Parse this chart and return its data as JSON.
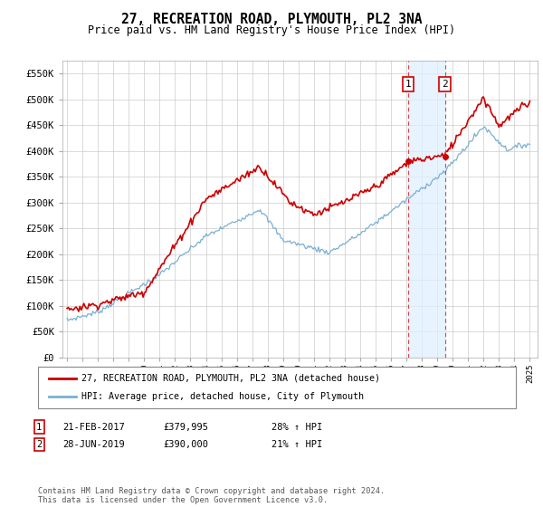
{
  "title": "27, RECREATION ROAD, PLYMOUTH, PL2 3NA",
  "subtitle": "Price paid vs. HM Land Registry's House Price Index (HPI)",
  "ylim": [
    0,
    575000
  ],
  "yticks": [
    0,
    50000,
    100000,
    150000,
    200000,
    250000,
    300000,
    350000,
    400000,
    450000,
    500000,
    550000
  ],
  "ytick_labels": [
    "£0",
    "£50K",
    "£100K",
    "£150K",
    "£200K",
    "£250K",
    "£300K",
    "£350K",
    "£400K",
    "£450K",
    "£500K",
    "£550K"
  ],
  "hpi_color": "#7bafd4",
  "price_color": "#cc0000",
  "marker_color": "#cc0000",
  "sale1_year": 2017.13,
  "sale1_price": 379995,
  "sale2_year": 2019.49,
  "sale2_price": 390000,
  "legend_label1": "27, RECREATION ROAD, PLYMOUTH, PL2 3NA (detached house)",
  "legend_label2": "HPI: Average price, detached house, City of Plymouth",
  "note1_date": "21-FEB-2017",
  "note1_price": "£379,995",
  "note1_hpi": "28% ↑ HPI",
  "note2_date": "28-JUN-2019",
  "note2_price": "£390,000",
  "note2_hpi": "21% ↑ HPI",
  "footer": "Contains HM Land Registry data © Crown copyright and database right 2024.\nThis data is licensed under the Open Government Licence v3.0.",
  "bg_highlight_color": "#ddeeff",
  "vline_color": "#dd4444"
}
